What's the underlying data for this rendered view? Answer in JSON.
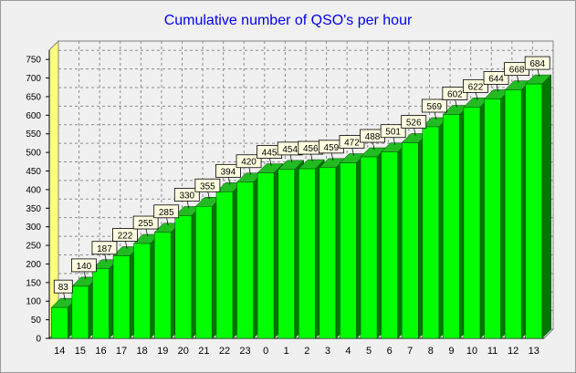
{
  "chart_data": {
    "type": "bar",
    "title": "Cumulative number of QSO's per hour",
    "xlabel": "",
    "ylabel": "",
    "categories": [
      "14",
      "15",
      "16",
      "17",
      "18",
      "19",
      "20",
      "21",
      "22",
      "23",
      "0",
      "1",
      "2",
      "3",
      "4",
      "5",
      "6",
      "7",
      "8",
      "9",
      "10",
      "11",
      "12",
      "13"
    ],
    "values": [
      83,
      140,
      187,
      222,
      255,
      285,
      330,
      355,
      394,
      420,
      445,
      454,
      456,
      459,
      472,
      488,
      501,
      526,
      569,
      602,
      622,
      644,
      668,
      684
    ],
    "ylim": [
      0,
      775
    ],
    "yticks": [
      0,
      50,
      100,
      150,
      200,
      250,
      300,
      350,
      400,
      450,
      500,
      550,
      600,
      650,
      700,
      750
    ],
    "grid": true,
    "legend": "none",
    "colors": {
      "bar_front": "#00ff00",
      "bar_top": "#22bb22",
      "bar_side": "#007700",
      "label_fill": "#ffffe1",
      "title": "#0000ee",
      "wall_left": "#ffff80"
    }
  }
}
